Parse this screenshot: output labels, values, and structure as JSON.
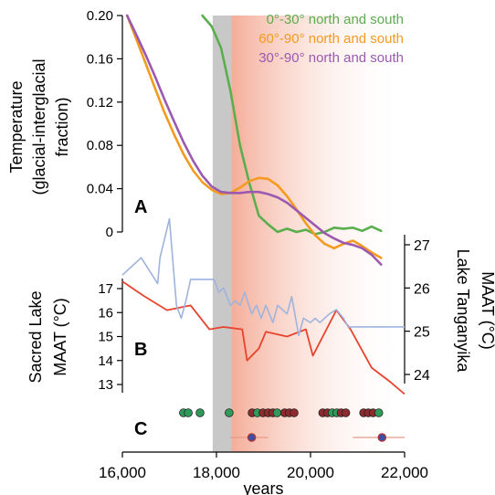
{
  "colors": {
    "green": "#5aae4e",
    "orange": "#f39a1f",
    "purple": "#9b59b0",
    "blue": "#9fb3dd",
    "red": "#e8432d",
    "band_grey": "#c8c8c8",
    "band_peach": "#f6b8a4",
    "dot_green": "#2f9a5a",
    "dot_red": "#8c2a2e",
    "dot_blue": "#3b4fa3"
  },
  "chart_data": [
    {
      "type": "line",
      "panel_label": "A",
      "ylabel_lines": [
        "Temperature",
        "(glacial-interglacial",
        "fraction)"
      ],
      "yticks": [
        "0.20",
        "0.16",
        "0.12",
        "0.08",
        "0.04",
        "0"
      ],
      "ytick_values": [
        0.2,
        0.16,
        0.12,
        0.08,
        0.04,
        0
      ],
      "ylim": [
        -0.03,
        0.2
      ],
      "xlim": [
        16000,
        22000
      ],
      "legend_position": "top-right",
      "series": [
        {
          "name": "0°-30° north and south",
          "color": "green",
          "x": [
            17700,
            17900,
            18100,
            18300,
            18500,
            18700,
            18900,
            19100,
            19300,
            19500,
            19700,
            19900,
            20100,
            20300,
            20500,
            20700,
            20900,
            21100,
            21300,
            21500
          ],
          "y": [
            0.2,
            0.19,
            0.17,
            0.13,
            0.08,
            0.045,
            0.015,
            0.007,
            0.0,
            0.003,
            0.0,
            0.002,
            -0.002,
            0.0,
            0.004,
            0.003,
            0.004,
            0.001,
            0.005,
            0.001
          ]
        },
        {
          "name": "60°-90° north and south",
          "color": "orange",
          "x": [
            16100,
            16300,
            16500,
            16700,
            16900,
            17100,
            17300,
            17500,
            17700,
            17900,
            18100,
            18300,
            18500,
            18700,
            18900,
            19100,
            19300,
            19500,
            19700,
            19900,
            20100,
            20300,
            20500,
            20700,
            20900,
            21100,
            21300,
            21500
          ],
          "y": [
            0.2,
            0.178,
            0.155,
            0.132,
            0.11,
            0.09,
            0.072,
            0.057,
            0.046,
            0.039,
            0.035,
            0.036,
            0.041,
            0.047,
            0.05,
            0.049,
            0.043,
            0.033,
            0.021,
            0.008,
            -0.003,
            -0.011,
            -0.015,
            -0.011,
            -0.008,
            -0.013,
            -0.019,
            -0.024
          ]
        },
        {
          "name": "30°-90° north and south",
          "color": "purple",
          "x": [
            16100,
            16300,
            16500,
            16700,
            16900,
            17100,
            17300,
            17500,
            17700,
            17900,
            18100,
            18300,
            18500,
            18700,
            18900,
            19100,
            19300,
            19500,
            19700,
            19900,
            20100,
            20300,
            20500,
            20700,
            20900,
            21100,
            21300,
            21500
          ],
          "y": [
            0.2,
            0.182,
            0.163,
            0.143,
            0.122,
            0.102,
            0.083,
            0.066,
            0.052,
            0.042,
            0.037,
            0.036,
            0.036,
            0.037,
            0.037,
            0.035,
            0.032,
            0.027,
            0.02,
            0.013,
            0.006,
            -0.001,
            -0.006,
            -0.01,
            -0.012,
            -0.015,
            -0.021,
            -0.03
          ]
        }
      ]
    },
    {
      "type": "line",
      "panel_label": "B",
      "ylabel_left_lines": [
        "Sacred Lake",
        "MAAT (°C)"
      ],
      "ylabel_right_lines": [
        "Lake Tanganyika",
        "MAAT (°C)"
      ],
      "left_yticks": [
        "17",
        "16",
        "15",
        "14",
        "13"
      ],
      "left_ytick_values": [
        17,
        16,
        15,
        14,
        13
      ],
      "left_ylim": [
        12.2,
        17.8
      ],
      "right_yticks": [
        "27",
        "26",
        "25",
        "24"
      ],
      "right_ytick_values": [
        27,
        26,
        25,
        24
      ],
      "right_ylim": [
        23.3,
        27.3
      ],
      "xlim": [
        16000,
        22000
      ],
      "series": [
        {
          "name": "Sacred Lake",
          "axis": "left",
          "color": "red",
          "x": [
            16000,
            16450,
            16950,
            17450,
            17850,
            18150,
            18550,
            18650,
            18900,
            19050,
            19500,
            19900,
            20050,
            20550,
            20850,
            21300,
            21700,
            22000
          ],
          "y": [
            17.3,
            16.7,
            16.1,
            16.3,
            15.3,
            15.4,
            15.3,
            14.0,
            14.5,
            15.2,
            15.0,
            15.3,
            14.2,
            16.1,
            15.3,
            13.7,
            13.1,
            12.6
          ]
        },
        {
          "name": "Lake Tanganyika",
          "axis": "right",
          "color": "blue",
          "x": [
            16000,
            16400,
            16750,
            16800,
            17000,
            17150,
            17250,
            17350,
            17450,
            17700,
            17950,
            18050,
            18150,
            18300,
            18400,
            18500,
            18600,
            18750,
            18850,
            18950,
            19050,
            19200,
            19300,
            19500,
            19600,
            19750,
            19850,
            20000,
            20100,
            20200,
            20400,
            20550,
            20700,
            20800,
            21000,
            21300,
            21650,
            22000
          ],
          "y": [
            26.3,
            26.7,
            26.1,
            26.7,
            27.6,
            25.6,
            25.3,
            25.7,
            26.2,
            26.2,
            26.2,
            25.9,
            26.0,
            25.6,
            25.7,
            25.6,
            25.9,
            25.4,
            25.6,
            25.3,
            25.6,
            25.2,
            25.6,
            25.4,
            25.8,
            24.9,
            25.3,
            25.2,
            25.3,
            25.2,
            25.4,
            25.5,
            25.3,
            25.1,
            25.1,
            25.1,
            25.1,
            25.1
          ]
        }
      ]
    },
    {
      "type": "scatter",
      "panel_label": "C",
      "xlim": [
        16000,
        22000
      ],
      "xticks": [
        "16,000",
        "18,000",
        "20,000",
        "22,000"
      ],
      "xtick_values": [
        16000,
        18000,
        20000,
        22000
      ],
      "xlabel": "years",
      "points": [
        {
          "x": 17300,
          "color": "dot_green"
        },
        {
          "x": 17400,
          "color": "dot_green"
        },
        {
          "x": 17650,
          "color": "dot_green"
        },
        {
          "x": 18270,
          "color": "dot_green"
        },
        {
          "x": 18760,
          "color": "dot_red"
        },
        {
          "x": 18870,
          "color": "dot_green"
        },
        {
          "x": 18990,
          "color": "dot_red"
        },
        {
          "x": 19100,
          "color": "dot_red"
        },
        {
          "x": 19200,
          "color": "dot_red"
        },
        {
          "x": 19290,
          "color": "dot_green"
        },
        {
          "x": 19450,
          "color": "dot_red"
        },
        {
          "x": 19550,
          "color": "dot_red"
        },
        {
          "x": 19650,
          "color": "dot_red"
        },
        {
          "x": 20260,
          "color": "dot_red"
        },
        {
          "x": 20360,
          "color": "dot_red"
        },
        {
          "x": 20460,
          "color": "dot_green"
        },
        {
          "x": 20560,
          "color": "dot_green"
        },
        {
          "x": 20650,
          "color": "dot_red"
        },
        {
          "x": 20750,
          "color": "dot_red"
        },
        {
          "x": 21130,
          "color": "dot_red"
        },
        {
          "x": 21230,
          "color": "dot_red"
        },
        {
          "x": 21330,
          "color": "dot_red"
        },
        {
          "x": 21450,
          "color": "dot_green"
        }
      ],
      "error_points": [
        {
          "x": 18750,
          "xmin": 18300,
          "xmax": 19100
        },
        {
          "x": 21520,
          "xmin": 20900,
          "xmax": 22000
        }
      ]
    }
  ]
}
